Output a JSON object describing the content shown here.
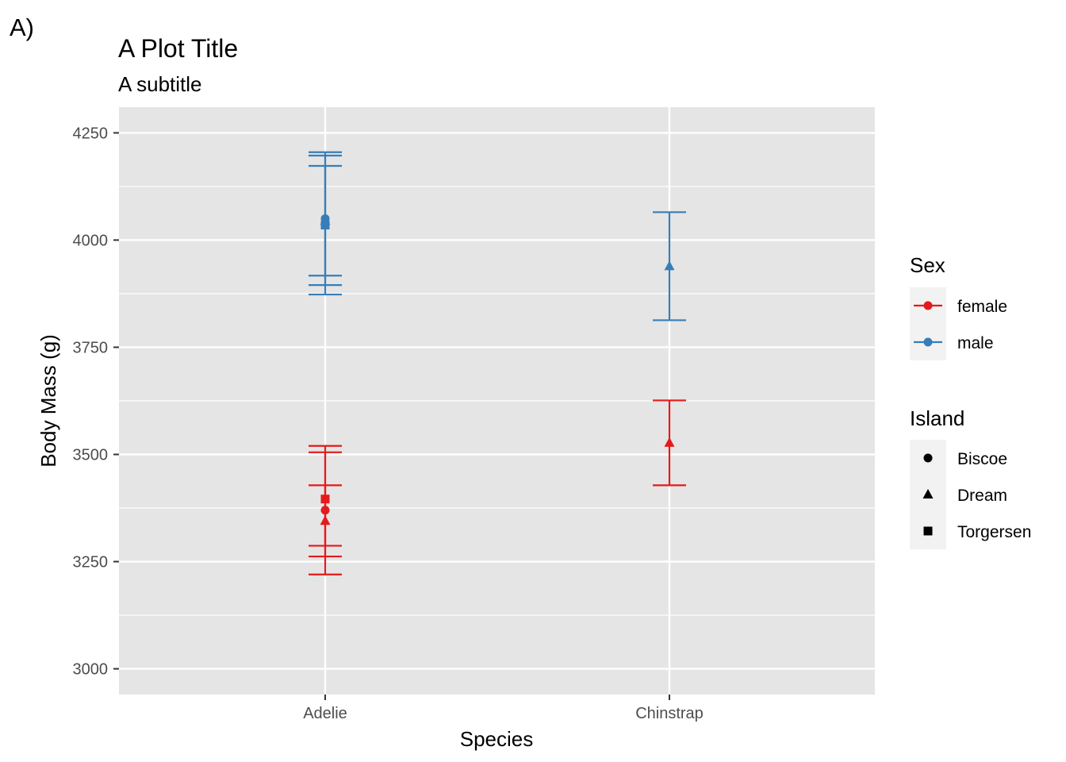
{
  "tag": "A)",
  "chart_data": {
    "type": "scatter",
    "title": "A Plot Title",
    "subtitle": "A subtitle",
    "xlabel": "Species",
    "ylabel": "Body Mass (g)",
    "categories": [
      "Adelie",
      "Chinstrap"
    ],
    "ylim": [
      2940,
      4310
    ],
    "yticks": [
      3000,
      3250,
      3500,
      3750,
      4000,
      4250
    ],
    "ytick_labels": [
      "3000",
      "3250",
      "3500",
      "3750",
      "4000",
      "4250"
    ],
    "grid": true,
    "legend_position": "right",
    "colors": {
      "female": "#e41a1c",
      "male": "#377eb8"
    },
    "legends": [
      {
        "title": "Sex",
        "items": [
          {
            "label": "female",
            "color": "#e41a1c",
            "shape": "circle-with-line"
          },
          {
            "label": "male",
            "color": "#377eb8",
            "shape": "circle-with-line"
          }
        ]
      },
      {
        "title": "Island",
        "items": [
          {
            "label": "Biscoe",
            "shape": "circle"
          },
          {
            "label": "Dream",
            "shape": "triangle"
          },
          {
            "label": "Torgersen",
            "shape": "square"
          }
        ]
      }
    ],
    "points": [
      {
        "species": "Adelie",
        "sex": "male",
        "island": "Biscoe",
        "mean": 4050,
        "lower": 3895,
        "upper": 4205
      },
      {
        "species": "Adelie",
        "sex": "male",
        "island": "Dream",
        "mean": 4045,
        "lower": 3917,
        "upper": 4173
      },
      {
        "species": "Adelie",
        "sex": "male",
        "island": "Torgersen",
        "mean": 4035,
        "lower": 3873,
        "upper": 4197
      },
      {
        "species": "Chinstrap",
        "sex": "male",
        "island": "Dream",
        "mean": 3939,
        "lower": 3813,
        "upper": 4065
      },
      {
        "species": "Adelie",
        "sex": "female",
        "island": "Biscoe",
        "mean": 3370,
        "lower": 3220,
        "upper": 3520
      },
      {
        "species": "Adelie",
        "sex": "female",
        "island": "Dream",
        "mean": 3345,
        "lower": 3262,
        "upper": 3428
      },
      {
        "species": "Adelie",
        "sex": "female",
        "island": "Torgersen",
        "mean": 3396,
        "lower": 3287,
        "upper": 3505
      },
      {
        "species": "Chinstrap",
        "sex": "female",
        "island": "Dream",
        "mean": 3527,
        "lower": 3428,
        "upper": 3626
      }
    ]
  }
}
